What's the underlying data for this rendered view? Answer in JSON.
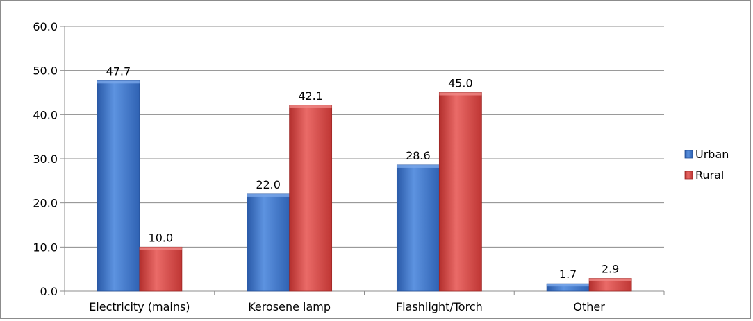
{
  "chart_data": {
    "type": "bar",
    "categories": [
      "Electricity (mains)",
      "Kerosene lamp",
      "Flashlight/Torch",
      "Other"
    ],
    "series": [
      {
        "name": "Urban",
        "values": [
          47.7,
          22.0,
          28.6,
          1.7
        ],
        "value_labels": [
          "47.7",
          "22.0",
          "28.6",
          "1.7"
        ],
        "color": "#3f76c9"
      },
      {
        "name": "Rural",
        "values": [
          10.0,
          42.1,
          45.0,
          2.9
        ],
        "value_labels": [
          "10.0",
          "42.1",
          "45.0",
          "2.9"
        ],
        "color": "#d54442"
      }
    ],
    "ylim": [
      0,
      60
    ],
    "yticks": [
      0,
      10,
      20,
      30,
      40,
      50,
      60
    ],
    "ytick_labels": [
      "0.0",
      "10.0",
      "20.0",
      "30.0",
      "40.0",
      "50.0",
      "60.0"
    ],
    "grid": true,
    "legend_position": "right"
  }
}
